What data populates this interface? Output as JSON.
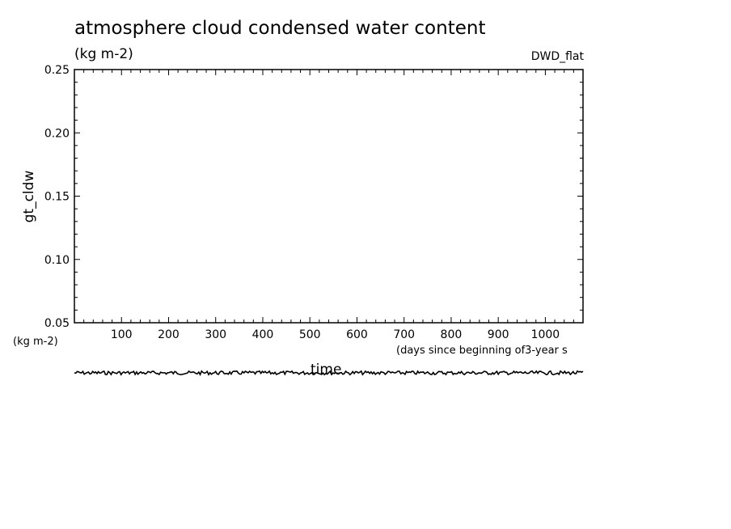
{
  "chart_data": {
    "type": "line",
    "title": "atmosphere cloud condensed water content",
    "units_top": "(kg m-2)",
    "source_tag": "DWD_flat",
    "ylabel": "gt_cldw",
    "y_units": "(kg m-2)",
    "ylim": [
      0.05,
      0.25
    ],
    "yticks": [
      "0.05",
      "0.10",
      "0.15",
      "0.20",
      "0.25"
    ],
    "xlim": [
      0,
      1080
    ],
    "xticks": [
      100,
      200,
      300,
      400,
      500,
      600,
      700,
      800,
      900,
      1000
    ],
    "xlabel": "time",
    "x_units": "(days since beginning of3-year s",
    "grid": false,
    "series": [
      {
        "values": [
          0.03,
          0.03,
          0.03,
          0.03,
          0.03,
          0.03,
          0.03,
          0.03,
          0.03,
          0.03,
          0.03
        ]
      }
    ]
  }
}
